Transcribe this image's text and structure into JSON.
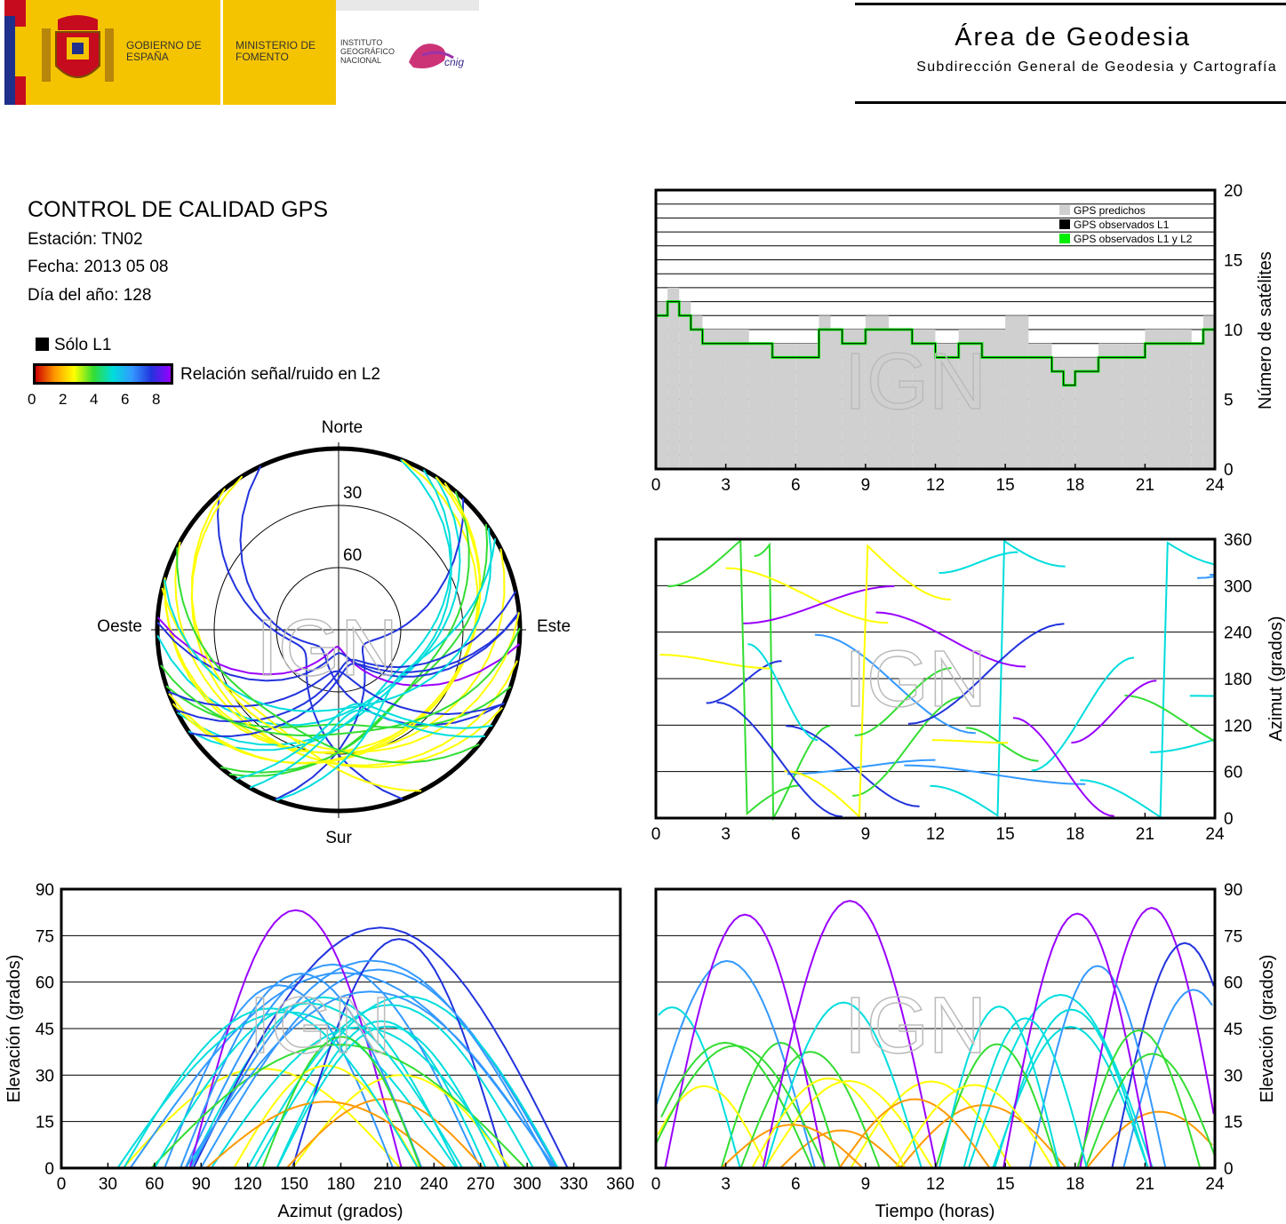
{
  "header": {
    "gobierno": "GOBIERNO DE ESPAÑA",
    "ministerio": "MINISTERIO DE FOMENTO",
    "instituto": "INSTITUTO GEOGRÁFICO NACIONAL",
    "cnig": "cnig",
    "area_title": "Área de Geodesia",
    "area_subtitle": "Subdirección General de Geodesia y Cartografía"
  },
  "info": {
    "title": "CONTROL DE CALIDAD GPS",
    "station": "Estación: TN02",
    "date": "Fecha: 2013 05 08",
    "doy": "Día del año: 128"
  },
  "colorbar": {
    "l1_only": "Sólo L1",
    "label": "Relación señal/ruido en L2",
    "ticks": [
      "0",
      "2",
      "4",
      "6",
      "8"
    ],
    "colors": [
      "#cc0000",
      "#ff9900",
      "#ffff00",
      "#33dd33",
      "#00dddd",
      "#3399ff",
      "#2233dd",
      "#9900ff"
    ]
  },
  "watermark": "IGN",
  "chart_data": [
    {
      "type": "area",
      "id": "satellites",
      "ylabel": "Número de satélites",
      "x_ticks": [
        "0",
        "3",
        "6",
        "9",
        "12",
        "15",
        "18",
        "21",
        "24"
      ],
      "y_ticks": [
        "0",
        "5",
        "10",
        "15",
        "20"
      ],
      "ylim": [
        0,
        20
      ],
      "xlim": [
        0,
        24
      ],
      "legend": [
        "GPS predichos",
        "GPS observados L1",
        "GPS observados L1 y L2"
      ],
      "legend_position": "top-right",
      "colors": {
        "predicted": "#d0d0d0",
        "l1": "#000000",
        "l1l2": "#00ee00"
      },
      "series": [
        {
          "name": "GPS predichos",
          "x": [
            0,
            0.5,
            1,
            1.5,
            2,
            3,
            4,
            5,
            6,
            7,
            7.5,
            8,
            9,
            9.5,
            10,
            11,
            12,
            13,
            14,
            15,
            16,
            17,
            17.5,
            18,
            19,
            20,
            21,
            22,
            23,
            23.5,
            24
          ],
          "values": [
            12,
            13,
            12,
            11,
            10,
            10,
            9,
            9,
            9,
            11,
            10,
            10,
            11,
            11,
            10,
            10,
            9,
            10,
            10,
            11,
            9,
            8,
            8,
            8,
            9,
            9,
            10,
            10,
            9,
            11,
            11
          ]
        },
        {
          "name": "GPS observados L1 y L2",
          "x": [
            0,
            0.5,
            1,
            1.5,
            2,
            3,
            4,
            5,
            6,
            7,
            7.5,
            8,
            9,
            9.5,
            10,
            11,
            12,
            13,
            14,
            15,
            16,
            17,
            17.5,
            18,
            19,
            20,
            21,
            22,
            23,
            23.5,
            24
          ],
          "values": [
            11,
            12,
            11,
            10,
            9,
            9,
            9,
            8,
            8,
            10,
            10,
            9,
            10,
            10,
            10,
            9,
            8,
            9,
            8,
            8,
            8,
            7,
            6,
            7,
            8,
            8,
            9,
            9,
            9,
            10,
            11
          ]
        }
      ]
    },
    {
      "type": "scatter",
      "id": "polar",
      "direction_labels": {
        "north": "Norte",
        "south": "Sur",
        "east": "Este",
        "west": "Oeste"
      },
      "ring_labels": [
        "30",
        "60"
      ]
    },
    {
      "type": "scatter",
      "id": "azimuth-time",
      "ylabel": "Azimut (grados)",
      "x_ticks": [
        "0",
        "3",
        "6",
        "9",
        "12",
        "15",
        "18",
        "21",
        "24"
      ],
      "y_ticks": [
        "0",
        "60",
        "120",
        "180",
        "240",
        "300",
        "360"
      ],
      "xlim": [
        0,
        24
      ],
      "ylim": [
        0,
        360
      ]
    },
    {
      "type": "scatter",
      "id": "elevation-azimuth",
      "xlabel": "Azimut (grados)",
      "ylabel": "Elevación (grados)",
      "x_ticks": [
        "0",
        "30",
        "60",
        "90",
        "120",
        "150",
        "180",
        "210",
        "240",
        "270",
        "300",
        "330",
        "360"
      ],
      "y_ticks": [
        "0",
        "15",
        "30",
        "45",
        "60",
        "75",
        "90"
      ],
      "xlim": [
        0,
        360
      ],
      "ylim": [
        0,
        90
      ]
    },
    {
      "type": "scatter",
      "id": "elevation-time",
      "xlabel": "Tiempo (horas)",
      "ylabel": "Elevación (grados)",
      "x_ticks": [
        "0",
        "3",
        "6",
        "9",
        "12",
        "15",
        "18",
        "21",
        "24"
      ],
      "y_ticks": [
        "0",
        "15",
        "30",
        "45",
        "60",
        "75",
        "90"
      ],
      "xlim": [
        0,
        24
      ],
      "ylim": [
        0,
        90
      ]
    }
  ]
}
